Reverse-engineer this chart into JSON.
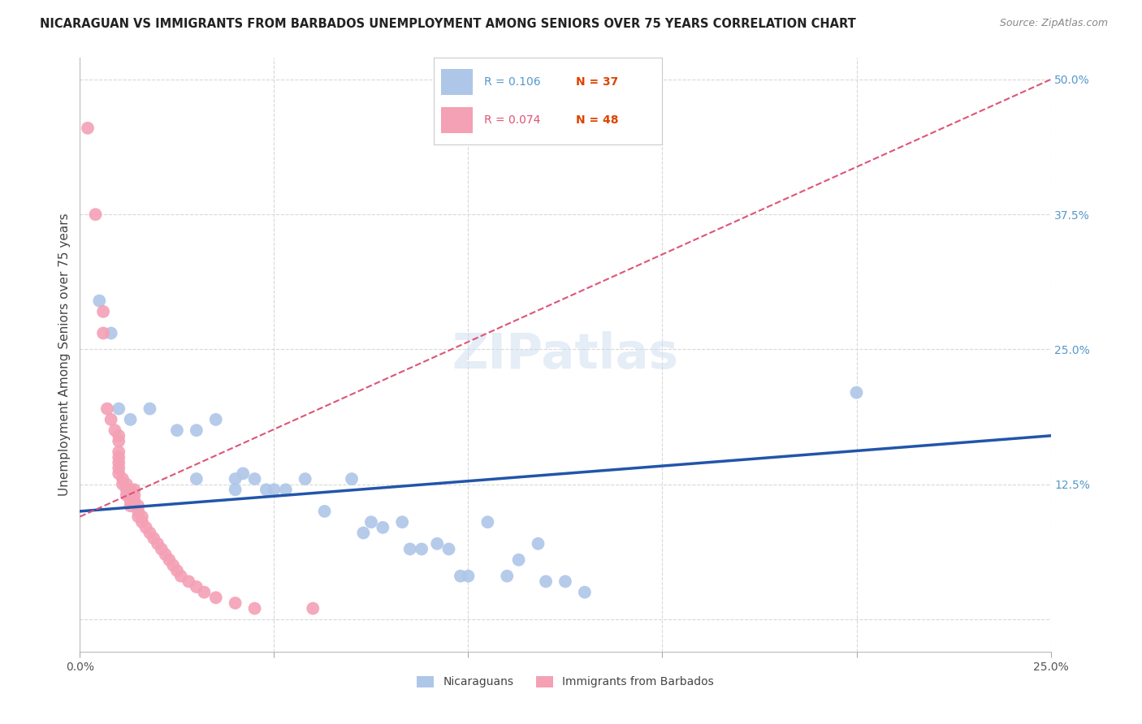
{
  "title": "NICARAGUAN VS IMMIGRANTS FROM BARBADOS UNEMPLOYMENT AMONG SENIORS OVER 75 YEARS CORRELATION CHART",
  "source": "Source: ZipAtlas.com",
  "ylabel": "Unemployment Among Seniors over 75 years",
  "xlabel_ticks": [
    0.0,
    0.05,
    0.1,
    0.15,
    0.2,
    0.25
  ],
  "xlabel_labels": [
    "0.0%",
    "",
    "",
    "",
    "",
    "25.0%"
  ],
  "ytick_positions": [
    0.0,
    0.125,
    0.25,
    0.375,
    0.5
  ],
  "ytick_labels": [
    "",
    "12.5%",
    "25.0%",
    "37.5%",
    "50.0%"
  ],
  "xmin": 0.0,
  "xmax": 0.25,
  "ymin": -0.03,
  "ymax": 0.52,
  "blue_r": "0.106",
  "blue_n": "37",
  "pink_r": "0.074",
  "pink_n": "48",
  "blue_color": "#aec6e8",
  "blue_line_color": "#2255aa",
  "pink_color": "#f4a0b5",
  "pink_line_color": "#dd5577",
  "blue_line_y0": 0.1,
  "blue_line_y1": 0.17,
  "pink_line_y0": 0.095,
  "pink_line_y1": 0.5,
  "blue_scatter": [
    [
      0.005,
      0.295
    ],
    [
      0.008,
      0.265
    ],
    [
      0.01,
      0.195
    ],
    [
      0.013,
      0.185
    ],
    [
      0.018,
      0.195
    ],
    [
      0.025,
      0.175
    ],
    [
      0.03,
      0.175
    ],
    [
      0.03,
      0.13
    ],
    [
      0.035,
      0.185
    ],
    [
      0.04,
      0.13
    ],
    [
      0.04,
      0.12
    ],
    [
      0.042,
      0.135
    ],
    [
      0.045,
      0.13
    ],
    [
      0.048,
      0.12
    ],
    [
      0.05,
      0.12
    ],
    [
      0.053,
      0.12
    ],
    [
      0.058,
      0.13
    ],
    [
      0.063,
      0.1
    ],
    [
      0.07,
      0.13
    ],
    [
      0.073,
      0.08
    ],
    [
      0.075,
      0.09
    ],
    [
      0.078,
      0.085
    ],
    [
      0.083,
      0.09
    ],
    [
      0.085,
      0.065
    ],
    [
      0.088,
      0.065
    ],
    [
      0.092,
      0.07
    ],
    [
      0.095,
      0.065
    ],
    [
      0.098,
      0.04
    ],
    [
      0.1,
      0.04
    ],
    [
      0.105,
      0.09
    ],
    [
      0.11,
      0.04
    ],
    [
      0.113,
      0.055
    ],
    [
      0.118,
      0.07
    ],
    [
      0.12,
      0.035
    ],
    [
      0.125,
      0.035
    ],
    [
      0.13,
      0.025
    ],
    [
      0.2,
      0.21
    ]
  ],
  "pink_scatter": [
    [
      0.002,
      0.455
    ],
    [
      0.004,
      0.375
    ],
    [
      0.006,
      0.285
    ],
    [
      0.006,
      0.265
    ],
    [
      0.007,
      0.195
    ],
    [
      0.008,
      0.185
    ],
    [
      0.009,
      0.175
    ],
    [
      0.01,
      0.17
    ],
    [
      0.01,
      0.165
    ],
    [
      0.01,
      0.155
    ],
    [
      0.01,
      0.15
    ],
    [
      0.01,
      0.145
    ],
    [
      0.01,
      0.14
    ],
    [
      0.01,
      0.135
    ],
    [
      0.011,
      0.13
    ],
    [
      0.011,
      0.125
    ],
    [
      0.012,
      0.12
    ],
    [
      0.012,
      0.115
    ],
    [
      0.012,
      0.125
    ],
    [
      0.013,
      0.12
    ],
    [
      0.013,
      0.115
    ],
    [
      0.013,
      0.11
    ],
    [
      0.013,
      0.105
    ],
    [
      0.014,
      0.12
    ],
    [
      0.014,
      0.115
    ],
    [
      0.014,
      0.11
    ],
    [
      0.015,
      0.105
    ],
    [
      0.015,
      0.1
    ],
    [
      0.015,
      0.095
    ],
    [
      0.016,
      0.095
    ],
    [
      0.016,
      0.09
    ],
    [
      0.017,
      0.085
    ],
    [
      0.018,
      0.08
    ],
    [
      0.019,
      0.075
    ],
    [
      0.02,
      0.07
    ],
    [
      0.021,
      0.065
    ],
    [
      0.022,
      0.06
    ],
    [
      0.023,
      0.055
    ],
    [
      0.024,
      0.05
    ],
    [
      0.025,
      0.045
    ],
    [
      0.026,
      0.04
    ],
    [
      0.028,
      0.035
    ],
    [
      0.03,
      0.03
    ],
    [
      0.032,
      0.025
    ],
    [
      0.035,
      0.02
    ],
    [
      0.04,
      0.015
    ],
    [
      0.045,
      0.01
    ],
    [
      0.06,
      0.01
    ]
  ],
  "background_color": "#ffffff",
  "grid_color": "#d8d8d8"
}
